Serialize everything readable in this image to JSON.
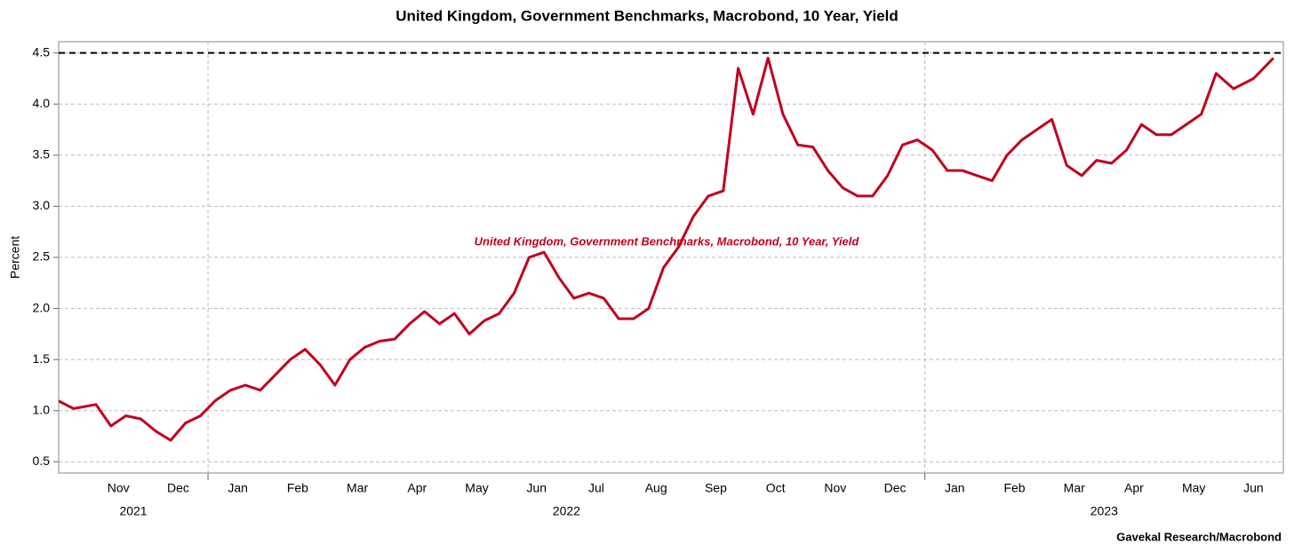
{
  "chart_data": {
    "type": "line",
    "title": "United Kingdom, Government Benchmarks, Macrobond, 10 Year, Yield",
    "y_label": "Percent",
    "source": "Gavekal Research/Macrobond",
    "annotation": "United Kingdom, Government Benchmarks, Macrobond, 10 Year, Yield",
    "x": [
      "2021-10",
      "2021-10",
      "2021-11",
      "2021-11",
      "2021-11",
      "2021-11",
      "2021-12",
      "2021-12",
      "2021-12",
      "2021-12",
      "2022-01",
      "2022-01",
      "2022-01",
      "2022-01",
      "2022-02",
      "2022-02",
      "2022-02",
      "2022-02",
      "2022-03",
      "2022-03",
      "2022-03",
      "2022-03",
      "2022-04",
      "2022-04",
      "2022-04",
      "2022-04",
      "2022-05",
      "2022-05",
      "2022-05",
      "2022-05",
      "2022-06",
      "2022-06",
      "2022-06",
      "2022-06",
      "2022-07",
      "2022-07",
      "2022-07",
      "2022-07",
      "2022-08",
      "2022-08",
      "2022-08",
      "2022-08",
      "2022-09",
      "2022-09",
      "2022-09",
      "2022-09",
      "2022-10",
      "2022-10",
      "2022-10",
      "2022-10",
      "2022-11",
      "2022-11",
      "2022-11",
      "2022-11",
      "2022-12",
      "2022-12",
      "2022-12",
      "2022-12",
      "2023-01",
      "2023-01",
      "2023-01",
      "2023-01",
      "2023-02",
      "2023-02",
      "2023-02",
      "2023-02",
      "2023-03",
      "2023-03",
      "2023-03",
      "2023-03",
      "2023-04",
      "2023-04",
      "2023-04",
      "2023-04",
      "2023-05",
      "2023-05",
      "2023-05",
      "2023-05",
      "2023-06",
      "2023-06",
      "2023-06"
    ],
    "series": [
      {
        "name": "United Kingdom, Government Benchmarks, Macrobond, 10 Year, Yield",
        "color": "#c0001e",
        "values": [
          1.17,
          1.02,
          1.06,
          0.85,
          0.95,
          0.92,
          0.8,
          0.71,
          0.88,
          0.95,
          1.1,
          1.2,
          1.25,
          1.2,
          1.35,
          1.5,
          1.6,
          1.45,
          1.25,
          1.5,
          1.62,
          1.68,
          1.7,
          1.85,
          1.97,
          1.85,
          1.95,
          1.75,
          1.88,
          1.95,
          2.15,
          2.5,
          2.55,
          2.3,
          2.1,
          2.15,
          2.1,
          1.9,
          1.9,
          2.0,
          2.4,
          2.6,
          2.9,
          3.1,
          3.15,
          4.35,
          3.9,
          4.45,
          3.9,
          3.6,
          3.58,
          3.35,
          3.18,
          3.1,
          3.1,
          3.3,
          3.6,
          3.65,
          3.55,
          3.35,
          3.35,
          3.3,
          3.25,
          3.5,
          3.65,
          3.75,
          3.85,
          3.4,
          3.3,
          3.45,
          3.42,
          3.55,
          3.8,
          3.7,
          3.7,
          3.8,
          3.9,
          4.3,
          4.15,
          4.25,
          4.45
        ]
      }
    ],
    "xlim": [
      "2021-10",
      "2023-06"
    ],
    "xticks": [
      {
        "value": "2021-11",
        "label": "Nov"
      },
      {
        "value": "2021-12",
        "label": "Dec"
      },
      {
        "value": "2022-01",
        "label": "Jan"
      },
      {
        "value": "2022-02",
        "label": "Feb"
      },
      {
        "value": "2022-03",
        "label": "Mar"
      },
      {
        "value": "2022-04",
        "label": "Apr"
      },
      {
        "value": "2022-05",
        "label": "May"
      },
      {
        "value": "2022-06",
        "label": "Jun"
      },
      {
        "value": "2022-07",
        "label": "Jul"
      },
      {
        "value": "2022-08",
        "label": "Aug"
      },
      {
        "value": "2022-09",
        "label": "Sep"
      },
      {
        "value": "2022-10",
        "label": "Oct"
      },
      {
        "value": "2022-11",
        "label": "Nov"
      },
      {
        "value": "2022-12",
        "label": "Dec"
      },
      {
        "value": "2023-01",
        "label": "Jan"
      },
      {
        "value": "2023-02",
        "label": "Feb"
      },
      {
        "value": "2023-03",
        "label": "Mar"
      },
      {
        "value": "2023-04",
        "label": "Apr"
      },
      {
        "value": "2023-05",
        "label": "May"
      },
      {
        "value": "2023-06",
        "label": "Jun"
      }
    ],
    "years": [
      "2021",
      "2022",
      "2023"
    ],
    "ylim": [
      0.39,
      4.61
    ],
    "yticks": [
      0.5,
      1,
      1.5,
      2,
      2.5,
      3,
      3.5,
      4,
      4.5
    ],
    "ytick_labels": [
      "0.5",
      "1.0",
      "1.5",
      "2.0",
      "2.5",
      "3.0",
      "3.5",
      "4.0",
      "4.5"
    ],
    "reference_line": 4.5,
    "grid": true
  }
}
